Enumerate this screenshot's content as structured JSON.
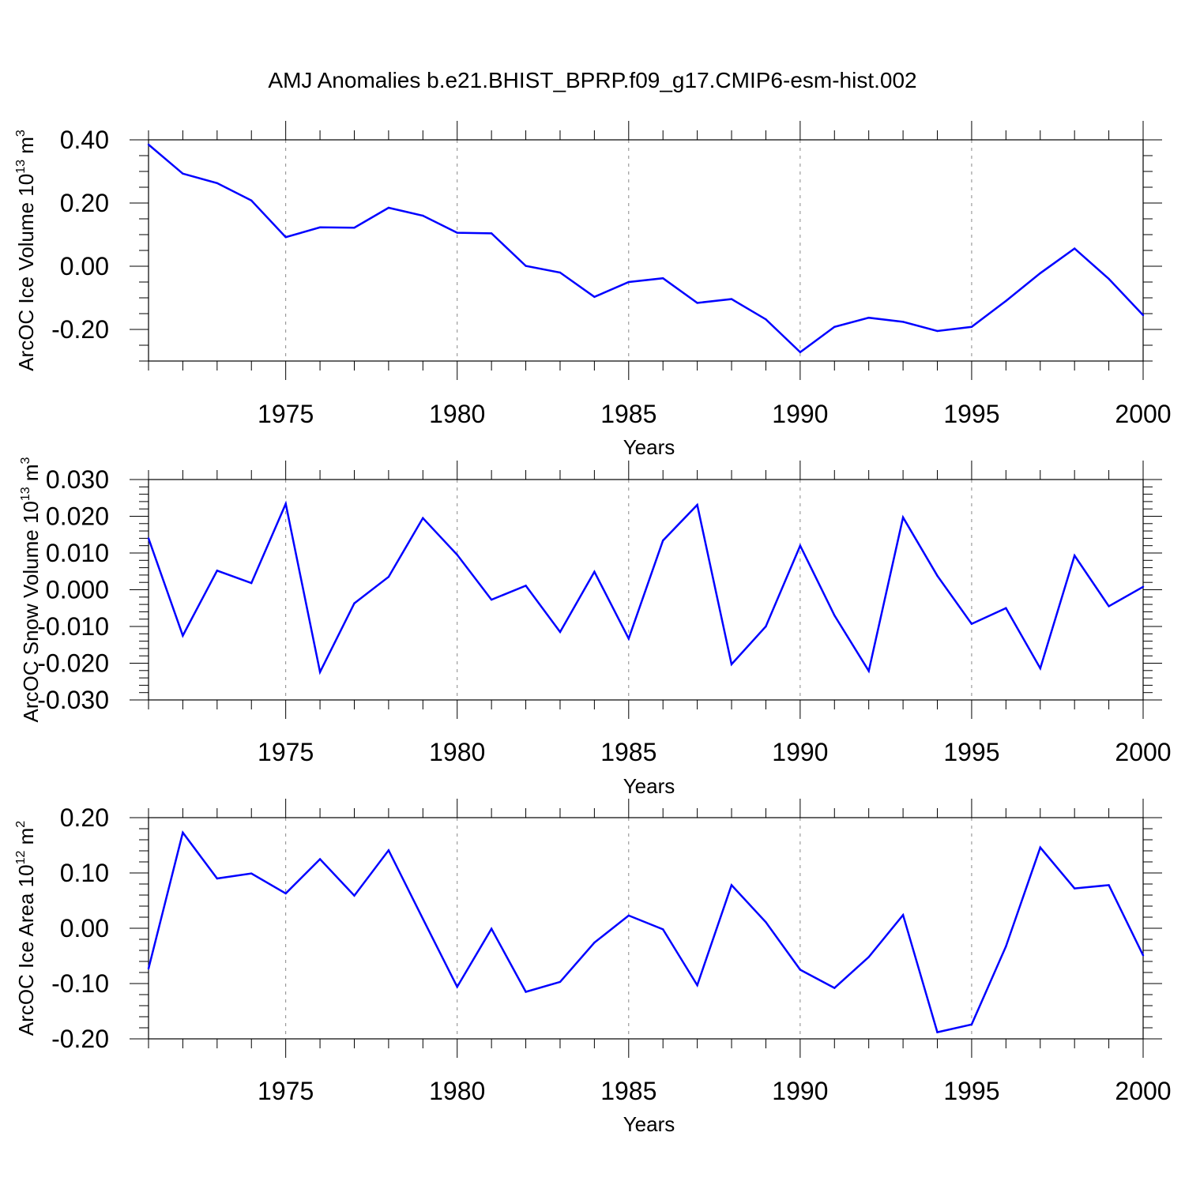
{
  "figure_title": "AMJ Anomalies b.e21.BHIST_BPRP.f09_g17.CMIP6-esm-hist.002",
  "colors": {
    "series": "#0000ff",
    "axis": "#000000",
    "grid": "#888888"
  },
  "chart_data": [
    {
      "type": "line",
      "panel": "ice-volume",
      "title": "AMJ Anomalies b.e21.BHIST_BPRP.f09_g17.CMIP6-esm-hist.002",
      "xlabel": "Years",
      "ylabel": {
        "main": "ArcOC Ice Volume 10",
        "exp": "13",
        "unit": " m",
        "unit_exp": "3"
      },
      "xlim": [
        1971,
        2000
      ],
      "ylim": [
        -0.3,
        0.4
      ],
      "xticks": [
        1975,
        1980,
        1985,
        1990,
        1995,
        2000
      ],
      "xtick_labels": [
        "1975",
        "1980",
        "1985",
        "1990",
        "1995",
        "2000"
      ],
      "yticks": [
        -0.2,
        0.0,
        0.2,
        0.4
      ],
      "ytick_labels": [
        "-0.20",
        "0.00",
        "0.20",
        "0.40"
      ],
      "minor_y_step": 0.05,
      "grid": "vertical dashed at major x ticks",
      "x": [
        1971,
        1972,
        1973,
        1974,
        1975,
        1976,
        1977,
        1978,
        1979,
        1980,
        1981,
        1982,
        1983,
        1984,
        1985,
        1986,
        1987,
        1988,
        1989,
        1990,
        1991,
        1992,
        1993,
        1994,
        1995,
        1996,
        1997,
        1998,
        1999,
        2000
      ],
      "values": [
        0.385,
        0.293,
        0.263,
        0.208,
        0.092,
        0.123,
        0.122,
        0.185,
        0.16,
        0.106,
        0.104,
        0.001,
        -0.02,
        -0.097,
        -0.05,
        -0.038,
        -0.116,
        -0.104,
        -0.168,
        -0.272,
        -0.192,
        -0.163,
        -0.176,
        -0.205,
        -0.192,
        -0.11,
        -0.022,
        0.056,
        -0.04,
        -0.155
      ]
    },
    {
      "type": "line",
      "panel": "snow-volume",
      "xlabel": "Years",
      "ylabel": {
        "main": "ArcOC Snow Volume 10",
        "exp": "13",
        "unit": " m",
        "unit_exp": "3"
      },
      "xlim": [
        1971,
        2000
      ],
      "ylim": [
        -0.03,
        0.03
      ],
      "xticks": [
        1975,
        1980,
        1985,
        1990,
        1995,
        2000
      ],
      "xtick_labels": [
        "1975",
        "1980",
        "1985",
        "1990",
        "1995",
        "2000"
      ],
      "yticks": [
        -0.03,
        -0.02,
        -0.01,
        0.0,
        0.01,
        0.02,
        0.03
      ],
      "ytick_labels": [
        "-0.030",
        "-0.020",
        "-0.010",
        "0.000",
        "0.010",
        "0.020",
        "0.030"
      ],
      "minor_y_step": 0.002,
      "grid": "vertical dashed at major x ticks",
      "x": [
        1971,
        1972,
        1973,
        1974,
        1975,
        1976,
        1977,
        1978,
        1979,
        1980,
        1981,
        1982,
        1983,
        1984,
        1985,
        1986,
        1987,
        1988,
        1989,
        1990,
        1991,
        1992,
        1993,
        1994,
        1995,
        1996,
        1997,
        1998,
        1999,
        2000
      ],
      "values": [
        0.014,
        -0.0125,
        0.0052,
        0.0018,
        0.0234,
        -0.0224,
        -0.0037,
        0.0035,
        0.0195,
        0.0095,
        -0.0027,
        0.0011,
        -0.0115,
        0.0049,
        -0.0133,
        0.0134,
        0.0231,
        -0.0203,
        -0.01,
        0.012,
        -0.007,
        -0.0221,
        0.0197,
        0.0038,
        -0.0093,
        -0.005,
        -0.0214,
        0.0093,
        -0.0045,
        0.0008
      ]
    },
    {
      "type": "line",
      "panel": "ice-area",
      "xlabel": "Years",
      "ylabel": {
        "main": "ArcOC Ice Area 10",
        "exp": "12",
        "unit": " m",
        "unit_exp": "2"
      },
      "xlim": [
        1971,
        2000
      ],
      "ylim": [
        -0.2,
        0.2
      ],
      "xticks": [
        1975,
        1980,
        1985,
        1990,
        1995,
        2000
      ],
      "xtick_labels": [
        "1975",
        "1980",
        "1985",
        "1990",
        "1995",
        "2000"
      ],
      "yticks": [
        -0.2,
        -0.1,
        0.0,
        0.1,
        0.2
      ],
      "ytick_labels": [
        "-0.20",
        "-0.10",
        "0.00",
        "0.10",
        "0.20"
      ],
      "minor_y_step": 0.02,
      "grid": "vertical dashed at major x ticks",
      "x": [
        1971,
        1972,
        1973,
        1974,
        1975,
        1976,
        1977,
        1978,
        1979,
        1980,
        1981,
        1982,
        1983,
        1984,
        1985,
        1986,
        1987,
        1988,
        1989,
        1990,
        1991,
        1992,
        1993,
        1994,
        1995,
        1996,
        1997,
        1998,
        1999,
        2000
      ],
      "values": [
        -0.073,
        0.173,
        0.09,
        0.099,
        0.063,
        0.125,
        0.059,
        0.141,
        0.017,
        -0.106,
        -0.001,
        -0.115,
        -0.097,
        -0.026,
        0.023,
        -0.002,
        -0.103,
        0.078,
        0.011,
        -0.075,
        -0.108,
        -0.052,
        0.024,
        -0.188,
        -0.174,
        -0.033,
        0.146,
        0.072,
        0.078,
        -0.049
      ]
    }
  ]
}
